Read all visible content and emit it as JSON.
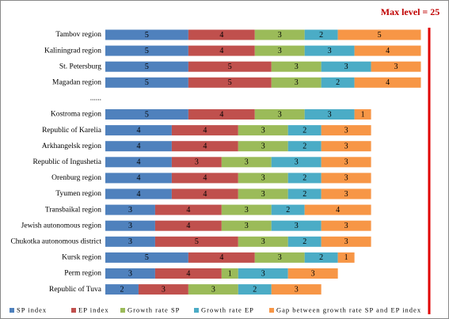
{
  "chart_data": {
    "type": "stacked-bar-horizontal",
    "annotation": "Max level = 25",
    "categories": [
      "Tambov region",
      "Kaliningrad region",
      "St. Petersburg",
      "Magadan region",
      "......",
      "Kostroma region",
      "Republic of Karelia",
      "Arkhangelsk region",
      "Republic of Ingushetia",
      "Orenburg region",
      "Tyumen region",
      "Transbaikal region",
      "Jewish autonomous region",
      "Chukotka autonomous district",
      "Kursk region",
      "Perm region",
      "Republic of Tuva"
    ],
    "series": [
      {
        "name": "SP index",
        "color": "#4f81bd",
        "values": [
          5,
          5,
          5,
          5,
          null,
          5,
          4,
          4,
          4,
          4,
          4,
          3,
          3,
          3,
          5,
          3,
          2
        ]
      },
      {
        "name": "EP index",
        "color": "#c0504d",
        "values": [
          4,
          4,
          5,
          5,
          null,
          4,
          4,
          4,
          3,
          4,
          4,
          4,
          4,
          5,
          4,
          4,
          3
        ]
      },
      {
        "name": "Growth rate SP",
        "color": "#9bbb59",
        "values": [
          3,
          3,
          3,
          3,
          null,
          3,
          3,
          3,
          3,
          3,
          3,
          3,
          3,
          3,
          3,
          1,
          3
        ]
      },
      {
        "name": "Growth rate EP",
        "color": "#4bacc6",
        "values": [
          2,
          3,
          3,
          2,
          null,
          3,
          2,
          2,
          3,
          2,
          2,
          2,
          3,
          2,
          2,
          3,
          2
        ]
      },
      {
        "name": "Gap between growth rate SP and EP index",
        "color": "#f79646",
        "values": [
          5,
          4,
          3,
          4,
          null,
          1,
          3,
          3,
          3,
          3,
          3,
          4,
          3,
          3,
          1,
          3,
          3
        ]
      }
    ],
    "xlim": [
      0,
      19.5
    ]
  }
}
